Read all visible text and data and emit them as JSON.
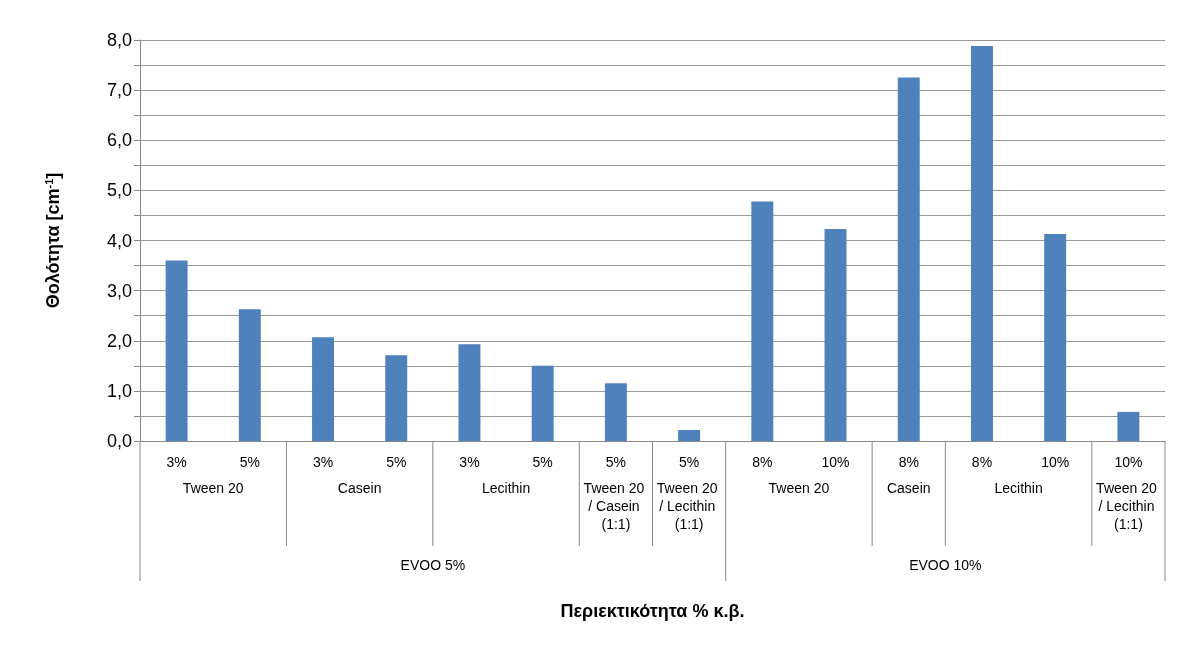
{
  "chart_data": {
    "type": "bar",
    "ylabel": "Θολότητα [cm$^{-1}$]",
    "categories": [
      "3%",
      "5%",
      "3%",
      "5%",
      "3%",
      "5%",
      "5%",
      "5%",
      "8%",
      "10%",
      "8%",
      "8%",
      "10%",
      "10%"
    ],
    "values": [
      3.6,
      2.63,
      2.07,
      1.71,
      1.93,
      1.5,
      1.15,
      0.22,
      4.78,
      4.23,
      7.25,
      7.88,
      4.13,
      0.58
    ],
    "color": "#4f81bd",
    "ylim": [
      0,
      8
    ],
    "yticks": [
      {
        "value": 0,
        "label": "0,0"
      },
      {
        "value": 0.5,
        "label": null
      },
      {
        "value": 1,
        "label": "1,0"
      },
      {
        "value": 1.5,
        "label": null
      },
      {
        "value": 2,
        "label": "2,0"
      },
      {
        "value": 2.5,
        "label": null
      },
      {
        "value": 3,
        "label": "3,0"
      },
      {
        "value": 3.5,
        "label": null
      },
      {
        "value": 4,
        "label": "4,0"
      },
      {
        "value": 4.5,
        "label": null
      },
      {
        "value": 5,
        "label": "5,0"
      },
      {
        "value": 5.5,
        "label": null
      },
      {
        "value": 6,
        "label": "6,0"
      },
      {
        "value": 6.5,
        "label": null
      },
      {
        "value": 7,
        "label": "7,0"
      },
      {
        "value": 7.5,
        "label": null
      },
      {
        "value": 8,
        "label": "8,0"
      }
    ],
    "grid": "y",
    "annotations": [
      "Tween 20",
      "Casein",
      "Lecithin",
      "Tween 20 / Casein (1:1)",
      "Tween 20 / Lecithin (1:1)",
      "Tween 20",
      "Casein",
      "Lecithin",
      "Tween 20 / Lecithin (1:1)",
      "EVOO 5%",
      "EVOO 10%",
      "Περιεκτικότητα % κ.β."
    ]
  }
}
